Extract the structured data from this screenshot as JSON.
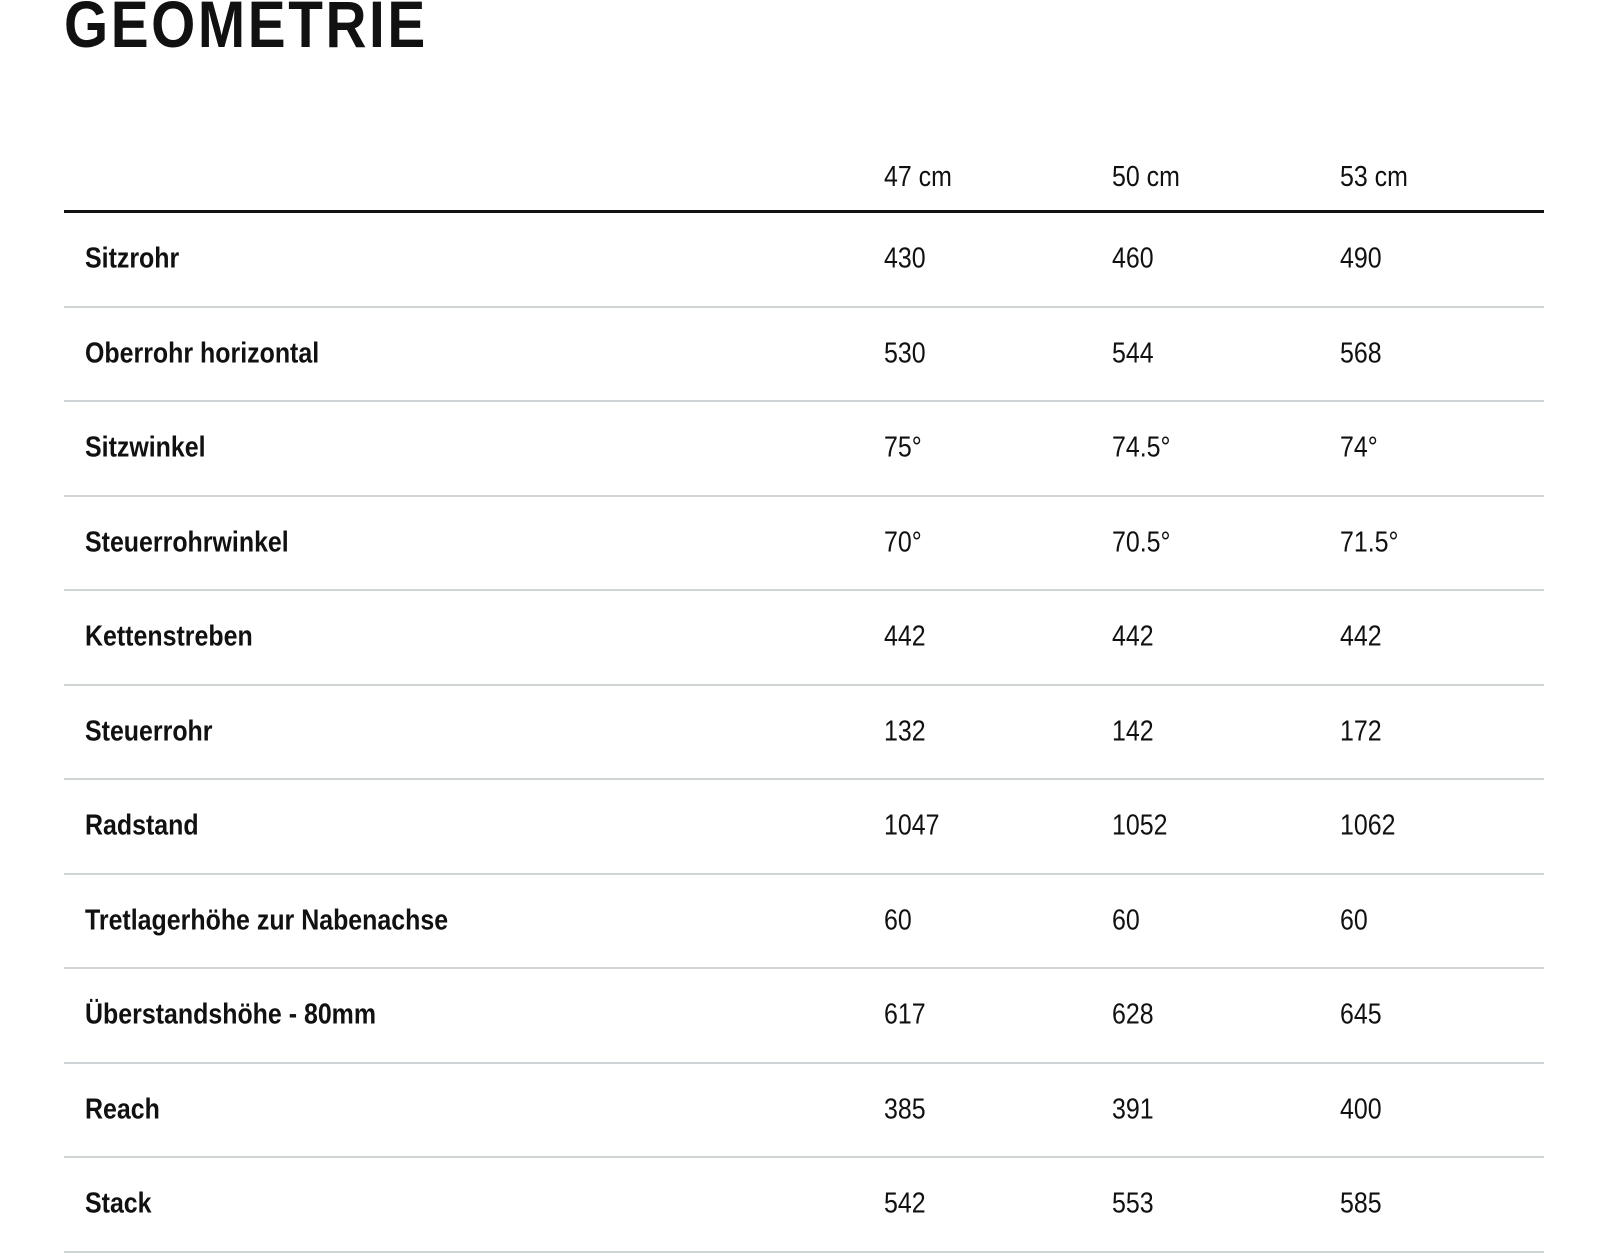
{
  "title": "GEOMETRIE",
  "columns": [
    "47 cm",
    "50 cm",
    "53 cm"
  ],
  "rows": [
    {
      "label": "Sitzrohr",
      "values": [
        "430",
        "460",
        "490"
      ]
    },
    {
      "label": "Oberrohr horizontal",
      "values": [
        "530",
        "544",
        "568"
      ]
    },
    {
      "label": "Sitzwinkel",
      "values": [
        "75°",
        "74.5°",
        "74°"
      ]
    },
    {
      "label": "Steuerrohrwinkel",
      "values": [
        "70°",
        "70.5°",
        "71.5°"
      ]
    },
    {
      "label": "Kettenstreben",
      "values": [
        "442",
        "442",
        "442"
      ]
    },
    {
      "label": "Steuerrohr",
      "values": [
        "132",
        "142",
        "172"
      ]
    },
    {
      "label": "Radstand",
      "values": [
        "1047",
        "1052",
        "1062"
      ]
    },
    {
      "label": "Tretlagerhöhe zur Nabenachse",
      "values": [
        "60",
        "60",
        "60"
      ]
    },
    {
      "label": "Überstandshöhe - 80mm",
      "values": [
        "617",
        "628",
        "645"
      ]
    },
    {
      "label": "Reach",
      "values": [
        "385",
        "391",
        "400"
      ]
    },
    {
      "label": "Stack",
      "values": [
        "542",
        "553",
        "585"
      ]
    }
  ]
}
